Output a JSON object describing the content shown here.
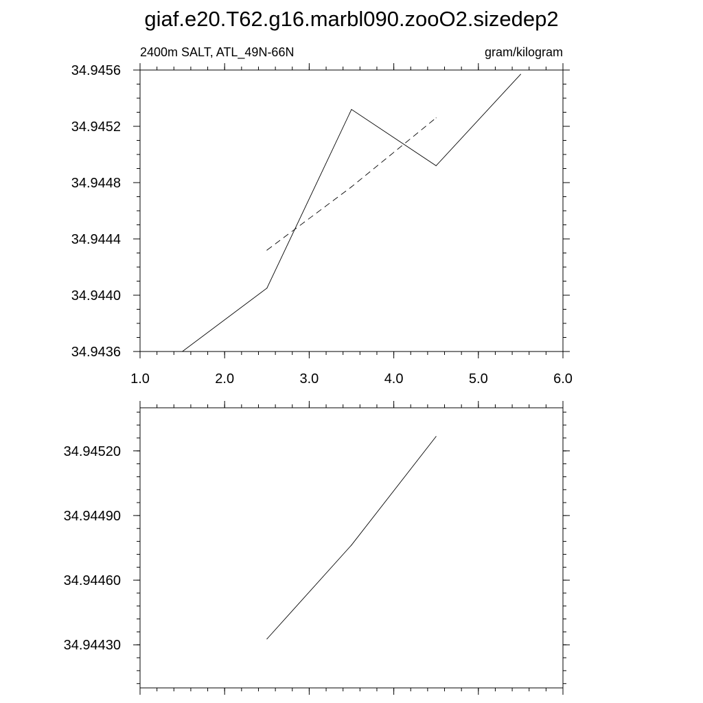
{
  "title": "giaf.e20.T62.g16.marbl090.zooO2.sizedep2",
  "chart_data": [
    {
      "type": "line",
      "left_label": "2400m SALT, ATL_49N-66N",
      "right_label": "gram/kilogram",
      "xlim": [
        1.0,
        6.0
      ],
      "ylim": [
        34.9436,
        34.9456
      ],
      "x_ticks": [
        "1.0",
        "2.0",
        "3.0",
        "4.0",
        "5.0",
        "6.0"
      ],
      "y_ticks": [
        "34.9436",
        "34.9440",
        "34.9444",
        "34.9448",
        "34.9452",
        "34.9456"
      ],
      "grid": false,
      "series": [
        {
          "style": "solid",
          "x": [
            1.5,
            2.5,
            3.5,
            4.5,
            5.5
          ],
          "y": [
            34.9436,
            34.94405,
            34.94532,
            34.94492,
            34.94557
          ]
        },
        {
          "style": "dashed",
          "x": [
            2.5,
            3.5,
            4.5
          ],
          "y": [
            34.94432,
            34.94477,
            34.94526
          ]
        }
      ]
    },
    {
      "type": "line",
      "xlim": [
        1.0,
        6.0
      ],
      "ylim": [
        34.9441,
        34.9454
      ],
      "x_ticks": [
        "",
        "",
        "",
        "",
        "",
        ""
      ],
      "y_ticks": [
        "34.94430",
        "34.94460",
        "34.94490",
        "34.94520"
      ],
      "grid": false,
      "series": [
        {
          "style": "solid",
          "x": [
            2.5,
            3.5,
            4.5
          ],
          "y": [
            34.944327,
            34.944763,
            34.945267
          ]
        }
      ]
    }
  ]
}
